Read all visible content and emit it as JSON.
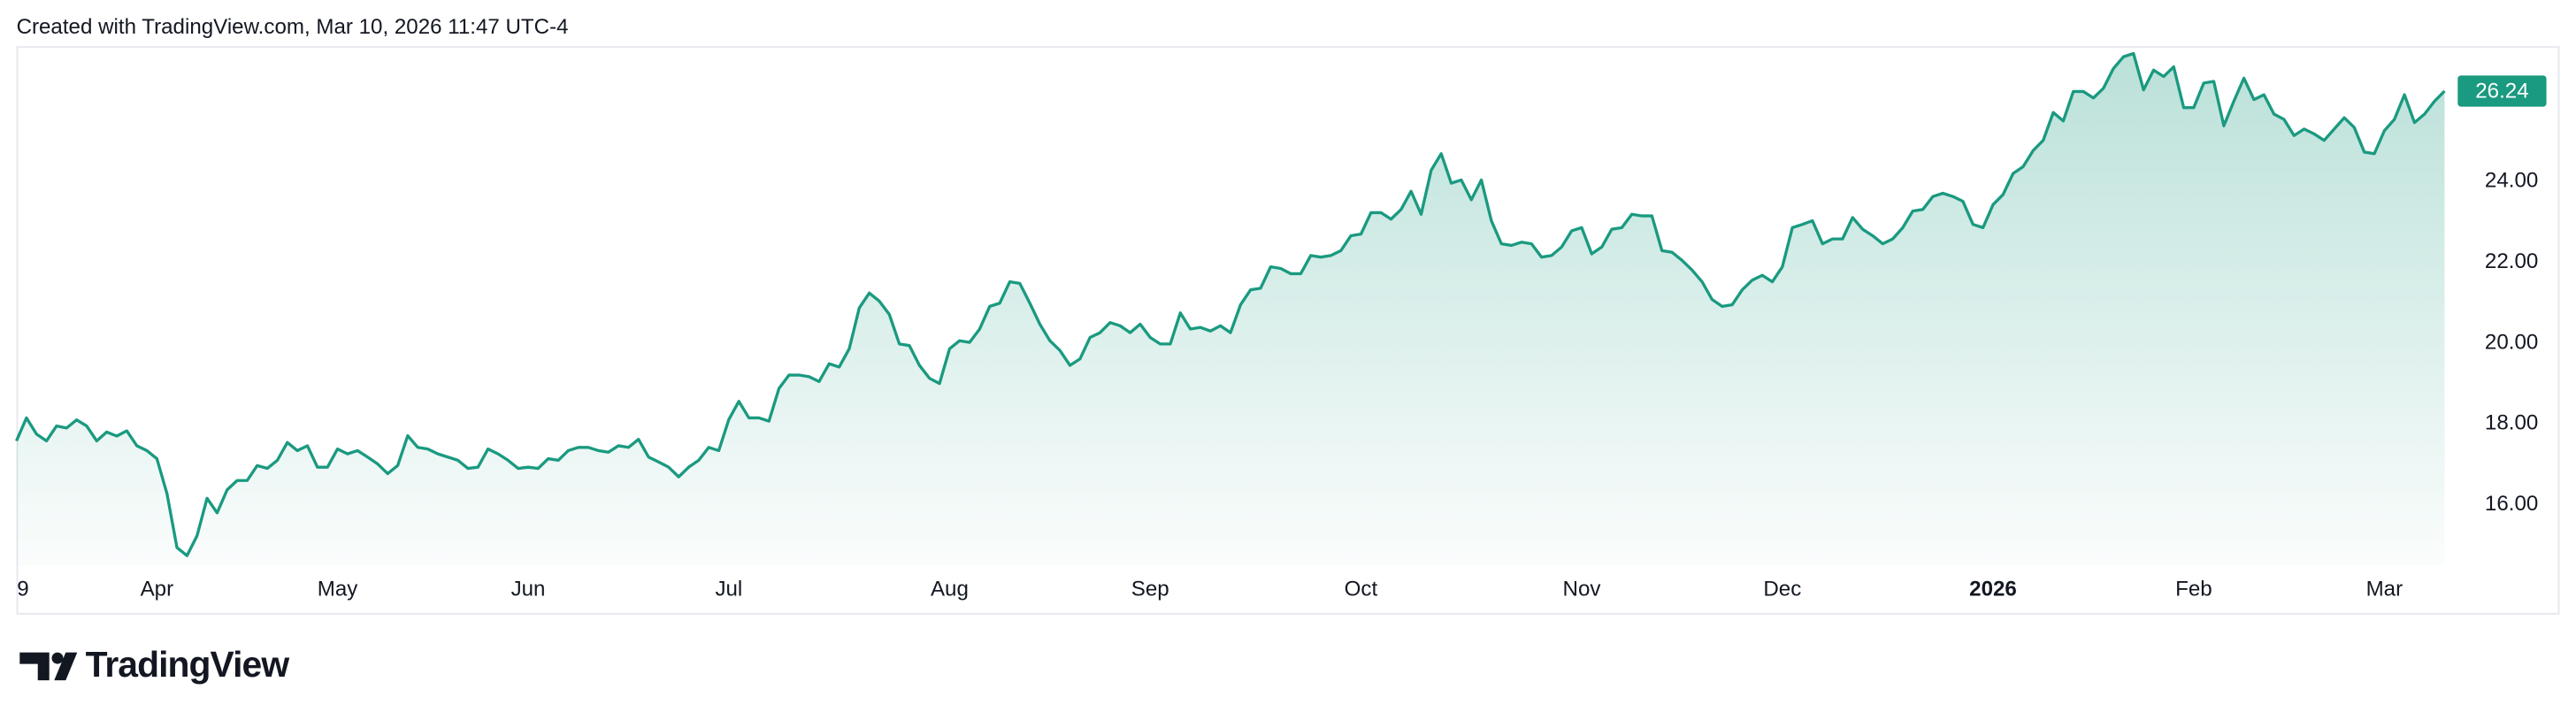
{
  "header": "Created with TradingView.com, Mar 10, 2026 11:47 UTC-4",
  "brand": "TradingView",
  "chart_data": {
    "type": "area",
    "color": "#1a9a80",
    "values": [
      17.58,
      18.15,
      17.75,
      17.58,
      17.95,
      17.9,
      18.1,
      17.95,
      17.58,
      17.8,
      17.7,
      17.83,
      17.46,
      17.34,
      17.14,
      16.28,
      14.94,
      14.74,
      15.23,
      16.16,
      15.8,
      16.37,
      16.6,
      16.6,
      16.97,
      16.9,
      17.1,
      17.54,
      17.34,
      17.46,
      16.93,
      16.93,
      17.38,
      17.26,
      17.34,
      17.18,
      17.01,
      16.77,
      16.97,
      17.71,
      17.42,
      17.38,
      17.26,
      17.18,
      17.1,
      16.9,
      16.93,
      17.38,
      17.26,
      17.1,
      16.9,
      16.93,
      16.9,
      17.14,
      17.1,
      17.34,
      17.42,
      17.42,
      17.34,
      17.3,
      17.46,
      17.42,
      17.62,
      17.18,
      17.06,
      16.93,
      16.69,
      16.93,
      17.1,
      17.42,
      17.34,
      18.11,
      18.56,
      18.15,
      18.15,
      18.07,
      18.88,
      19.21,
      19.21,
      19.17,
      19.05,
      19.49,
      19.41,
      19.86,
      20.87,
      21.24,
      21.04,
      20.71,
      19.98,
      19.94,
      19.45,
      19.13,
      19.0,
      19.86,
      20.06,
      20.02,
      20.35,
      20.91,
      20.99,
      21.52,
      21.48,
      20.99,
      20.47,
      20.06,
      19.82,
      19.45,
      19.61,
      20.14,
      20.26,
      20.51,
      20.43,
      20.26,
      20.47,
      20.14,
      19.98,
      19.98,
      20.75,
      20.35,
      20.39,
      20.3,
      20.43,
      20.26,
      20.95,
      21.32,
      21.36,
      21.89,
      21.85,
      21.72,
      21.72,
      22.17,
      22.13,
      22.17,
      22.29,
      22.66,
      22.7,
      23.23,
      23.23,
      23.07,
      23.31,
      23.76,
      23.19,
      24.28,
      24.69,
      23.96,
      24.04,
      23.55,
      24.04,
      23.03,
      22.46,
      22.42,
      22.5,
      22.46,
      22.13,
      22.17,
      22.38,
      22.78,
      22.86,
      22.21,
      22.38,
      22.82,
      22.86,
      23.19,
      23.15,
      23.15,
      22.29,
      22.25,
      22.05,
      21.81,
      21.52,
      21.08,
      20.91,
      20.95,
      21.32,
      21.56,
      21.68,
      21.52,
      21.89,
      22.86,
      22.94,
      23.03,
      22.46,
      22.58,
      22.58,
      23.11,
      22.82,
      22.66,
      22.46,
      22.58,
      22.86,
      23.27,
      23.31,
      23.63,
      23.71,
      23.63,
      23.51,
      22.94,
      22.86,
      23.43,
      23.68,
      24.2,
      24.37,
      24.77,
      25.02,
      25.71,
      25.5,
      26.23,
      26.23,
      26.07,
      26.31,
      26.8,
      27.09,
      27.17,
      26.27,
      26.76,
      26.6,
      26.84,
      25.83,
      25.83,
      26.44,
      26.48,
      25.38,
      25.99,
      26.56,
      26.03,
      26.15,
      25.67,
      25.54,
      25.14,
      25.3,
      25.18,
      25.02,
      25.3,
      25.58,
      25.34,
      24.73,
      24.69,
      25.26,
      25.54,
      26.15,
      25.46,
      25.67,
      25.99,
      26.24
    ],
    "xlim": [
      0,
      242
    ],
    "xticks": [
      {
        "value": 0,
        "label": "9"
      },
      {
        "value": 14,
        "label": "Apr"
      },
      {
        "value": 32,
        "label": "May"
      },
      {
        "value": 51,
        "label": "Jun"
      },
      {
        "value": 71,
        "label": "Jul"
      },
      {
        "value": 93,
        "label": "Aug"
      },
      {
        "value": 113,
        "label": "Sep"
      },
      {
        "value": 134,
        "label": "Oct"
      },
      {
        "value": 156,
        "label": "Nov"
      },
      {
        "value": 176,
        "label": "Dec"
      },
      {
        "value": 197,
        "label": "2026"
      },
      {
        "value": 217,
        "label": "Feb"
      },
      {
        "value": 236,
        "label": "Mar"
      }
    ],
    "ylim": [
      14.5,
      27.35
    ],
    "yticks": [
      {
        "value": 16,
        "label": "16.00"
      },
      {
        "value": 18,
        "label": "18.00"
      },
      {
        "value": 20,
        "label": "20.00"
      },
      {
        "value": 22,
        "label": "22.00"
      },
      {
        "value": 24,
        "label": "24.00"
      }
    ],
    "grid": false
  }
}
